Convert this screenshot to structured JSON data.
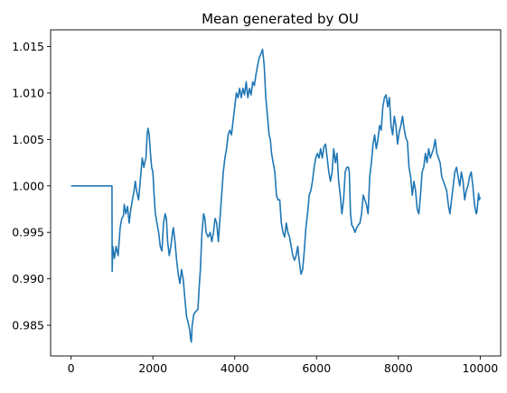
{
  "chart_data": {
    "type": "line",
    "title": "Mean generated by OU",
    "xlabel": "",
    "ylabel": "",
    "xlim": [
      -500,
      10500
    ],
    "ylim": [
      0.9817,
      1.0168
    ],
    "grid": false,
    "x_ticks": [
      0,
      2000,
      4000,
      6000,
      8000,
      10000
    ],
    "x_tick_labels": [
      "0",
      "2000",
      "4000",
      "6000",
      "8000",
      "10000"
    ],
    "y_ticks": [
      0.985,
      0.99,
      0.995,
      1.0,
      1.005,
      1.01,
      1.015
    ],
    "y_tick_labels": [
      "0.985",
      "0.990",
      "0.995",
      "1.000",
      "1.005",
      "1.010",
      "1.015"
    ],
    "line_color": "#1f77b4",
    "series": [
      {
        "points": [
          [
            0,
            1.0
          ],
          [
            1000,
            1.0
          ],
          [
            1005,
            0.9908
          ],
          [
            1020,
            0.9935
          ],
          [
            1060,
            0.9922
          ],
          [
            1100,
            0.9935
          ],
          [
            1150,
            0.9925
          ],
          [
            1200,
            0.9955
          ],
          [
            1240,
            0.9965
          ],
          [
            1280,
            0.9968
          ],
          [
            1300,
            0.998
          ],
          [
            1340,
            0.997
          ],
          [
            1380,
            0.9978
          ],
          [
            1420,
            0.996
          ],
          [
            1460,
            0.9975
          ],
          [
            1500,
            0.9985
          ],
          [
            1540,
            0.9995
          ],
          [
            1570,
            1.0005
          ],
          [
            1600,
            0.9995
          ],
          [
            1650,
            0.9985
          ],
          [
            1700,
            1.001
          ],
          [
            1740,
            1.003
          ],
          [
            1780,
            1.002
          ],
          [
            1800,
            1.0025
          ],
          [
            1830,
            1.003
          ],
          [
            1860,
            1.0055
          ],
          [
            1880,
            1.0062
          ],
          [
            1910,
            1.0055
          ],
          [
            1940,
            1.0035
          ],
          [
            1970,
            1.002
          ],
          [
            2000,
            1.0015
          ],
          [
            2030,
            0.999
          ],
          [
            2060,
            0.997
          ],
          [
            2100,
            0.996
          ],
          [
            2140,
            0.995
          ],
          [
            2180,
            0.9935
          ],
          [
            2220,
            0.993
          ],
          [
            2260,
            0.996
          ],
          [
            2300,
            0.997
          ],
          [
            2330,
            0.9965
          ],
          [
            2360,
            0.994
          ],
          [
            2400,
            0.9925
          ],
          [
            2440,
            0.9935
          ],
          [
            2480,
            0.995
          ],
          [
            2500,
            0.9955
          ],
          [
            2540,
            0.994
          ],
          [
            2580,
            0.992
          ],
          [
            2620,
            0.9905
          ],
          [
            2660,
            0.9895
          ],
          [
            2700,
            0.991
          ],
          [
            2740,
            0.99
          ],
          [
            2780,
            0.988
          ],
          [
            2820,
            0.986
          ],
          [
            2860,
            0.9853
          ],
          [
            2900,
            0.9845
          ],
          [
            2920,
            0.9836
          ],
          [
            2940,
            0.9832
          ],
          [
            2960,
            0.985
          ],
          [
            3000,
            0.9862
          ],
          [
            3050,
            0.9865
          ],
          [
            3100,
            0.9867
          ],
          [
            3130,
            0.989
          ],
          [
            3160,
            0.991
          ],
          [
            3200,
            0.995
          ],
          [
            3240,
            0.997
          ],
          [
            3270,
            0.9965
          ],
          [
            3300,
            0.995
          ],
          [
            3350,
            0.9945
          ],
          [
            3400,
            0.995
          ],
          [
            3440,
            0.994
          ],
          [
            3480,
            0.995
          ],
          [
            3520,
            0.9965
          ],
          [
            3560,
            0.996
          ],
          [
            3600,
            0.994
          ],
          [
            3640,
            0.9965
          ],
          [
            3680,
            0.999
          ],
          [
            3720,
            1.0015
          ],
          [
            3760,
            1.003
          ],
          [
            3800,
            1.004
          ],
          [
            3840,
            1.0055
          ],
          [
            3880,
            1.006
          ],
          [
            3920,
            1.0055
          ],
          [
            3960,
            1.007
          ],
          [
            4000,
            1.0085
          ],
          [
            4040,
            1.01
          ],
          [
            4080,
            1.0095
          ],
          [
            4120,
            1.0105
          ],
          [
            4160,
            1.0095
          ],
          [
            4200,
            1.0105
          ],
          [
            4240,
            1.0098
          ],
          [
            4280,
            1.0112
          ],
          [
            4320,
            1.0095
          ],
          [
            4360,
            1.0105
          ],
          [
            4400,
            1.0098
          ],
          [
            4440,
            1.0112
          ],
          [
            4480,
            1.0108
          ],
          [
            4520,
            1.012
          ],
          [
            4560,
            1.013
          ],
          [
            4600,
            1.0138
          ],
          [
            4640,
            1.0142
          ],
          [
            4680,
            1.0147
          ],
          [
            4720,
            1.013
          ],
          [
            4760,
            1.0095
          ],
          [
            4800,
            1.0075
          ],
          [
            4840,
            1.0055
          ],
          [
            4870,
            1.005
          ],
          [
            4900,
            1.0035
          ],
          [
            4940,
            1.0025
          ],
          [
            4980,
            1.0015
          ],
          [
            5020,
            0.999
          ],
          [
            5060,
            0.9985
          ],
          [
            5100,
            0.9985
          ],
          [
            5140,
            0.996
          ],
          [
            5180,
            0.995
          ],
          [
            5220,
            0.9945
          ],
          [
            5260,
            0.996
          ],
          [
            5300,
            0.995
          ],
          [
            5340,
            0.9945
          ],
          [
            5380,
            0.9935
          ],
          [
            5420,
            0.9925
          ],
          [
            5460,
            0.992
          ],
          [
            5500,
            0.9925
          ],
          [
            5540,
            0.9935
          ],
          [
            5580,
            0.9918
          ],
          [
            5620,
            0.9905
          ],
          [
            5660,
            0.991
          ],
          [
            5700,
            0.993
          ],
          [
            5740,
            0.9955
          ],
          [
            5780,
            0.997
          ],
          [
            5820,
            0.999
          ],
          [
            5860,
            0.9995
          ],
          [
            5900,
            1.0005
          ],
          [
            5940,
            1.002
          ],
          [
            5980,
            1.003
          ],
          [
            6020,
            1.0035
          ],
          [
            6060,
            1.003
          ],
          [
            6100,
            1.004
          ],
          [
            6140,
            1.003
          ],
          [
            6180,
            1.0042
          ],
          [
            6220,
            1.0045
          ],
          [
            6260,
            1.003
          ],
          [
            6300,
            1.0015
          ],
          [
            6340,
            1.0005
          ],
          [
            6380,
            1.0015
          ],
          [
            6420,
            1.004
          ],
          [
            6460,
            1.0025
          ],
          [
            6500,
            1.0035
          ],
          [
            6540,
            1.0005
          ],
          [
            6580,
            0.999
          ],
          [
            6620,
            0.997
          ],
          [
            6660,
            0.9985
          ],
          [
            6700,
            1.0015
          ],
          [
            6740,
            1.002
          ],
          [
            6780,
            1.002
          ],
          [
            6800,
            1.0015
          ],
          [
            6830,
            0.997
          ],
          [
            6860,
            0.9958
          ],
          [
            6900,
            0.9955
          ],
          [
            6940,
            0.995
          ],
          [
            6980,
            0.9955
          ],
          [
            7020,
            0.9958
          ],
          [
            7060,
            0.996
          ],
          [
            7100,
            0.997
          ],
          [
            7140,
            0.999
          ],
          [
            7180,
            0.9985
          ],
          [
            7220,
            0.998
          ],
          [
            7260,
            0.997
          ],
          [
            7280,
            0.999
          ],
          [
            7300,
            1.001
          ],
          [
            7340,
            1.0025
          ],
          [
            7380,
            1.0045
          ],
          [
            7420,
            1.0055
          ],
          [
            7460,
            1.004
          ],
          [
            7500,
            1.005
          ],
          [
            7540,
            1.0065
          ],
          [
            7580,
            1.006
          ],
          [
            7620,
            1.0085
          ],
          [
            7660,
            1.0095
          ],
          [
            7700,
            1.0098
          ],
          [
            7740,
            1.0085
          ],
          [
            7780,
            1.0095
          ],
          [
            7820,
            1.0065
          ],
          [
            7860,
            1.0055
          ],
          [
            7900,
            1.0075
          ],
          [
            7940,
            1.0065
          ],
          [
            7980,
            1.0045
          ],
          [
            8020,
            1.0058
          ],
          [
            8060,
            1.0065
          ],
          [
            8100,
            1.0075
          ],
          [
            8140,
            1.0062
          ],
          [
            8180,
            1.0052
          ],
          [
            8220,
            1.0048
          ],
          [
            8260,
            1.002
          ],
          [
            8300,
            1.001
          ],
          [
            8340,
            0.999
          ],
          [
            8380,
            1.0005
          ],
          [
            8420,
            0.9995
          ],
          [
            8460,
            0.9975
          ],
          [
            8500,
            0.997
          ],
          [
            8540,
            0.999
          ],
          [
            8580,
            1.0015
          ],
          [
            8620,
            1.002
          ],
          [
            8660,
            1.0035
          ],
          [
            8700,
            1.0025
          ],
          [
            8740,
            1.004
          ],
          [
            8780,
            1.003
          ],
          [
            8820,
            1.0035
          ],
          [
            8860,
            1.004
          ],
          [
            8900,
            1.005
          ],
          [
            8940,
            1.0035
          ],
          [
            8980,
            1.003
          ],
          [
            9020,
            1.0025
          ],
          [
            9060,
            1.001
          ],
          [
            9100,
            1.0005
          ],
          [
            9140,
            1.0
          ],
          [
            9180,
            0.9995
          ],
          [
            9220,
            0.998
          ],
          [
            9260,
            0.997
          ],
          [
            9300,
            0.9985
          ],
          [
            9340,
            1.0
          ],
          [
            9380,
            1.0015
          ],
          [
            9420,
            1.002
          ],
          [
            9460,
            1.001
          ],
          [
            9500,
            1.0
          ],
          [
            9540,
            1.0015
          ],
          [
            9580,
            1.0005
          ],
          [
            9620,
            0.9985
          ],
          [
            9660,
            0.9995
          ],
          [
            9700,
            1.0
          ],
          [
            9740,
            1.001
          ],
          [
            9780,
            1.0015
          ],
          [
            9820,
            1.0
          ],
          [
            9860,
            0.998
          ],
          [
            9880,
            0.9975
          ],
          [
            9900,
            0.997
          ],
          [
            9920,
            0.9972
          ],
          [
            9940,
            0.9982
          ],
          [
            9960,
            0.9992
          ],
          [
            9980,
            0.9985
          ],
          [
            10000,
            0.9988
          ]
        ]
      }
    ]
  }
}
